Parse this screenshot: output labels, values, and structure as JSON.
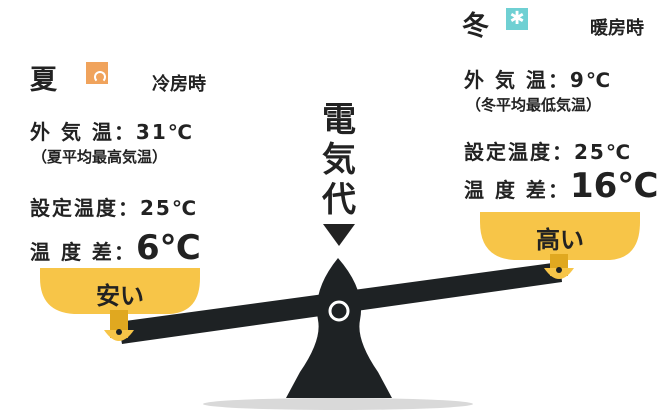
{
  "summer": {
    "season": "夏",
    "icon": "sun-icon",
    "mode": "冷房時",
    "outside_temp_label": "外 気 温",
    "outside_temp_value": "：31℃",
    "outside_note": "（夏平均最高気温）",
    "set_temp_label": "設定温度",
    "set_temp_value": "：25℃",
    "diff_label": "温 度 差",
    "diff_colon": "：",
    "diff_value": "6℃",
    "pan_label": "安い"
  },
  "winter": {
    "season": "冬",
    "icon": "snowflake-icon",
    "mode": "暖房時",
    "outside_temp_label": "外 気 温",
    "outside_temp_value": "：9℃",
    "outside_note": "（冬平均最低気温）",
    "set_temp_label": "設定温度",
    "set_temp_value": "：25℃",
    "diff_label": "温 度 差",
    "diff_colon": "：",
    "diff_value": "16℃",
    "pan_label": "高い"
  },
  "center_label": "電気代",
  "colors": {
    "pan": "#f7c548",
    "pan_dark": "#e0a820",
    "beam": "#1e2224",
    "sun": "#f0a35c",
    "snow": "#6fd0d3"
  }
}
